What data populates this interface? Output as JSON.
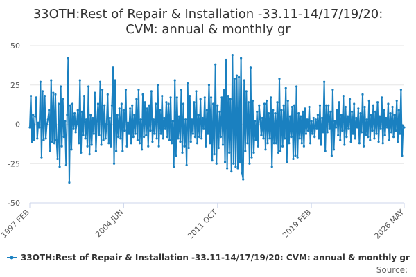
{
  "chart_data": {
    "type": "line",
    "title": [
      "33OTH:Rest of Repair & Installation -33.11-14/17/19/20:",
      "CVM: annual & monthly gr"
    ],
    "source": "Source:",
    "categories": [
      "1997 FEB",
      null,
      null,
      null,
      null,
      null,
      null,
      null,
      null,
      null,
      null,
      null,
      null,
      null,
      null,
      null,
      null,
      null,
      null,
      null,
      null,
      null,
      null,
      null,
      null,
      null,
      null,
      null,
      null,
      null,
      null,
      null,
      null,
      null,
      null,
      null,
      null,
      null,
      null,
      null,
      null,
      null,
      null,
      null,
      null,
      null,
      null,
      null,
      null,
      null,
      null,
      null,
      null,
      null,
      null,
      null,
      null,
      null,
      null,
      null,
      null,
      null,
      null,
      null,
      null,
      null,
      null,
      null,
      null,
      null,
      null,
      null,
      null,
      null,
      null,
      null,
      null,
      null,
      null,
      null,
      null,
      null,
      null,
      null,
      null,
      null,
      null,
      null,
      "2004 JUN",
      null,
      null,
      null,
      null,
      null,
      null,
      null,
      null,
      null,
      null,
      null,
      null,
      null,
      null,
      null,
      null,
      null,
      null,
      null,
      null,
      null,
      null,
      null,
      null,
      null,
      null,
      null,
      null,
      null,
      null,
      null,
      null,
      null,
      null,
      null,
      null,
      null,
      null,
      null,
      null,
      null,
      null,
      null,
      null,
      null,
      null,
      null,
      null,
      null,
      null,
      null,
      null,
      null,
      null,
      null,
      null,
      null,
      null,
      null,
      null,
      null,
      null,
      null,
      null,
      null,
      null,
      null,
      null,
      null,
      null,
      null,
      null,
      null,
      null,
      null,
      null,
      null,
      null,
      null,
      null,
      null,
      null,
      null,
      null,
      null,
      null,
      null,
      "2011 OCT",
      null,
      null,
      null,
      null,
      null,
      null,
      null,
      null,
      null,
      null,
      null,
      null,
      null,
      null,
      null,
      null,
      null,
      null,
      null,
      null,
      null,
      null,
      null,
      null,
      null,
      null,
      null,
      null,
      null,
      null,
      null,
      null,
      null,
      null,
      null,
      null,
      null,
      null,
      null,
      null,
      null,
      null,
      null,
      null,
      null,
      null,
      null,
      null,
      null,
      null,
      null,
      null,
      null,
      null,
      null,
      null,
      null,
      null,
      null,
      null,
      null,
      null,
      null,
      null,
      null,
      null,
      null,
      null,
      null,
      null,
      null,
      null,
      null,
      null,
      null,
      null,
      null,
      null,
      null,
      null,
      null,
      null,
      null,
      null,
      null,
      null,
      null,
      "2019 FEB",
      null,
      null,
      null,
      null,
      null,
      null,
      null,
      null,
      null,
      null,
      null,
      null,
      null,
      null,
      null,
      null,
      null,
      null,
      null,
      null,
      null,
      null,
      null,
      null,
      null,
      null,
      null,
      null,
      null,
      null,
      null,
      null,
      null,
      null,
      null,
      null,
      null,
      null,
      null,
      null,
      null,
      null,
      null,
      null,
      null,
      null,
      null,
      null,
      null,
      null,
      null,
      null,
      null,
      null,
      null,
      null,
      null,
      null,
      null,
      null,
      null,
      null,
      null,
      null,
      null,
      null,
      null,
      null,
      null,
      null,
      null,
      null,
      null,
      null,
      null,
      null,
      null,
      null,
      null,
      null,
      null,
      null,
      null,
      null,
      null,
      null,
      "2026 MAY"
    ],
    "series": [
      {
        "name": "33OTH:Rest of Repair & Installation -33.11-14/17/19/20: CVM: annual & monthly gr",
        "color": "#1a80c0",
        "values": [
          -2,
          18,
          -11,
          6,
          -10,
          5,
          17,
          -9,
          1,
          -2,
          27,
          -21,
          21,
          -10,
          18,
          -9,
          0,
          3,
          9,
          -17,
          28,
          -11,
          20,
          -12,
          19,
          -10,
          -22,
          13,
          -27,
          24,
          -14,
          16,
          -8,
          2,
          -26,
          6,
          42,
          -37,
          12,
          -16,
          13,
          -3,
          7,
          -5,
          0,
          9,
          -12,
          28,
          -18,
          8,
          -7,
          18,
          -9,
          3,
          -14,
          24,
          -19,
          6,
          -13,
          4,
          -6,
          20,
          -17,
          2,
          13,
          -7,
          27,
          -13,
          22,
          -10,
          12,
          -9,
          0,
          19,
          -12,
          4,
          -14,
          12,
          36,
          -25,
          28,
          -17,
          6,
          -8,
          10,
          -9,
          13,
          -17,
          9,
          -4,
          22,
          -14,
          1,
          -6,
          10,
          -12,
          12,
          -8,
          6,
          -6,
          16,
          -10,
          22,
          -12,
          3,
          -16,
          19,
          -8,
          14,
          -7,
          10,
          -14,
          12,
          -4,
          21,
          -11,
          3,
          -6,
          13,
          -9,
          25,
          -14,
          9,
          -6,
          18,
          -9,
          4,
          -3,
          14,
          -8,
          13,
          -10,
          17,
          -12,
          2,
          -27,
          28,
          -20,
          17,
          -9,
          5,
          -11,
          22,
          -18,
          13,
          -14,
          3,
          -26,
          26,
          -15,
          18,
          -11,
          3,
          -6,
          14,
          -8,
          21,
          -12,
          6,
          -8,
          16,
          -9,
          4,
          -3,
          17,
          -14,
          9,
          -6,
          25,
          -12,
          17,
          -23,
          13,
          -19,
          38,
          -25,
          12,
          -15,
          8,
          -8,
          17,
          -13,
          22,
          -24,
          41,
          -28,
          18,
          -18,
          16,
          -30,
          44,
          -25,
          29,
          -27,
          31,
          -28,
          30,
          -24,
          42,
          -31,
          -35,
          28,
          -17,
          21,
          -12,
          14,
          -25,
          36,
          -21,
          15,
          -18,
          2,
          -10,
          8,
          -14,
          12,
          3,
          -7,
          4,
          -9,
          13,
          -16,
          15,
          -12,
          7,
          -9,
          17,
          -27,
          9,
          -12,
          7,
          -12,
          14,
          -18,
          29,
          -17,
          9,
          -14,
          12,
          -9,
          23,
          -24,
          15,
          -12,
          5,
          -8,
          11,
          -22,
          12,
          -20,
          24,
          -21,
          7,
          -9,
          5,
          -12,
          8,
          -14,
          10,
          -6,
          3,
          -4,
          11,
          -12,
          2,
          -6,
          4,
          -8,
          3,
          -3,
          6,
          -9,
          12,
          -13,
          4,
          -5,
          27,
          -17,
          12,
          -5,
          12,
          -3,
          8,
          -20,
          22,
          -16,
          2,
          -2,
          9,
          -7,
          14,
          -10,
          6,
          -4,
          18,
          -13,
          11,
          -8,
          5,
          -3,
          16,
          -11,
          8,
          -6,
          13,
          -9,
          4,
          -2,
          10,
          -12,
          7,
          -5,
          19,
          -14,
          11,
          -7,
          3,
          -8,
          15,
          -10,
          6,
          -4,
          12,
          -9,
          8,
          -6,
          14,
          -11,
          5,
          -3,
          17,
          -12,
          9,
          -7,
          4,
          -2,
          13,
          -10,
          7,
          -5,
          11,
          -8,
          6,
          -4,
          15,
          -11,
          9,
          -6,
          22,
          -20,
          -1,
          -2
        ]
      }
    ],
    "ylim": [
      -50,
      50
    ],
    "yticks": [
      -50,
      -25,
      0,
      25,
      50
    ],
    "grid": true
  }
}
